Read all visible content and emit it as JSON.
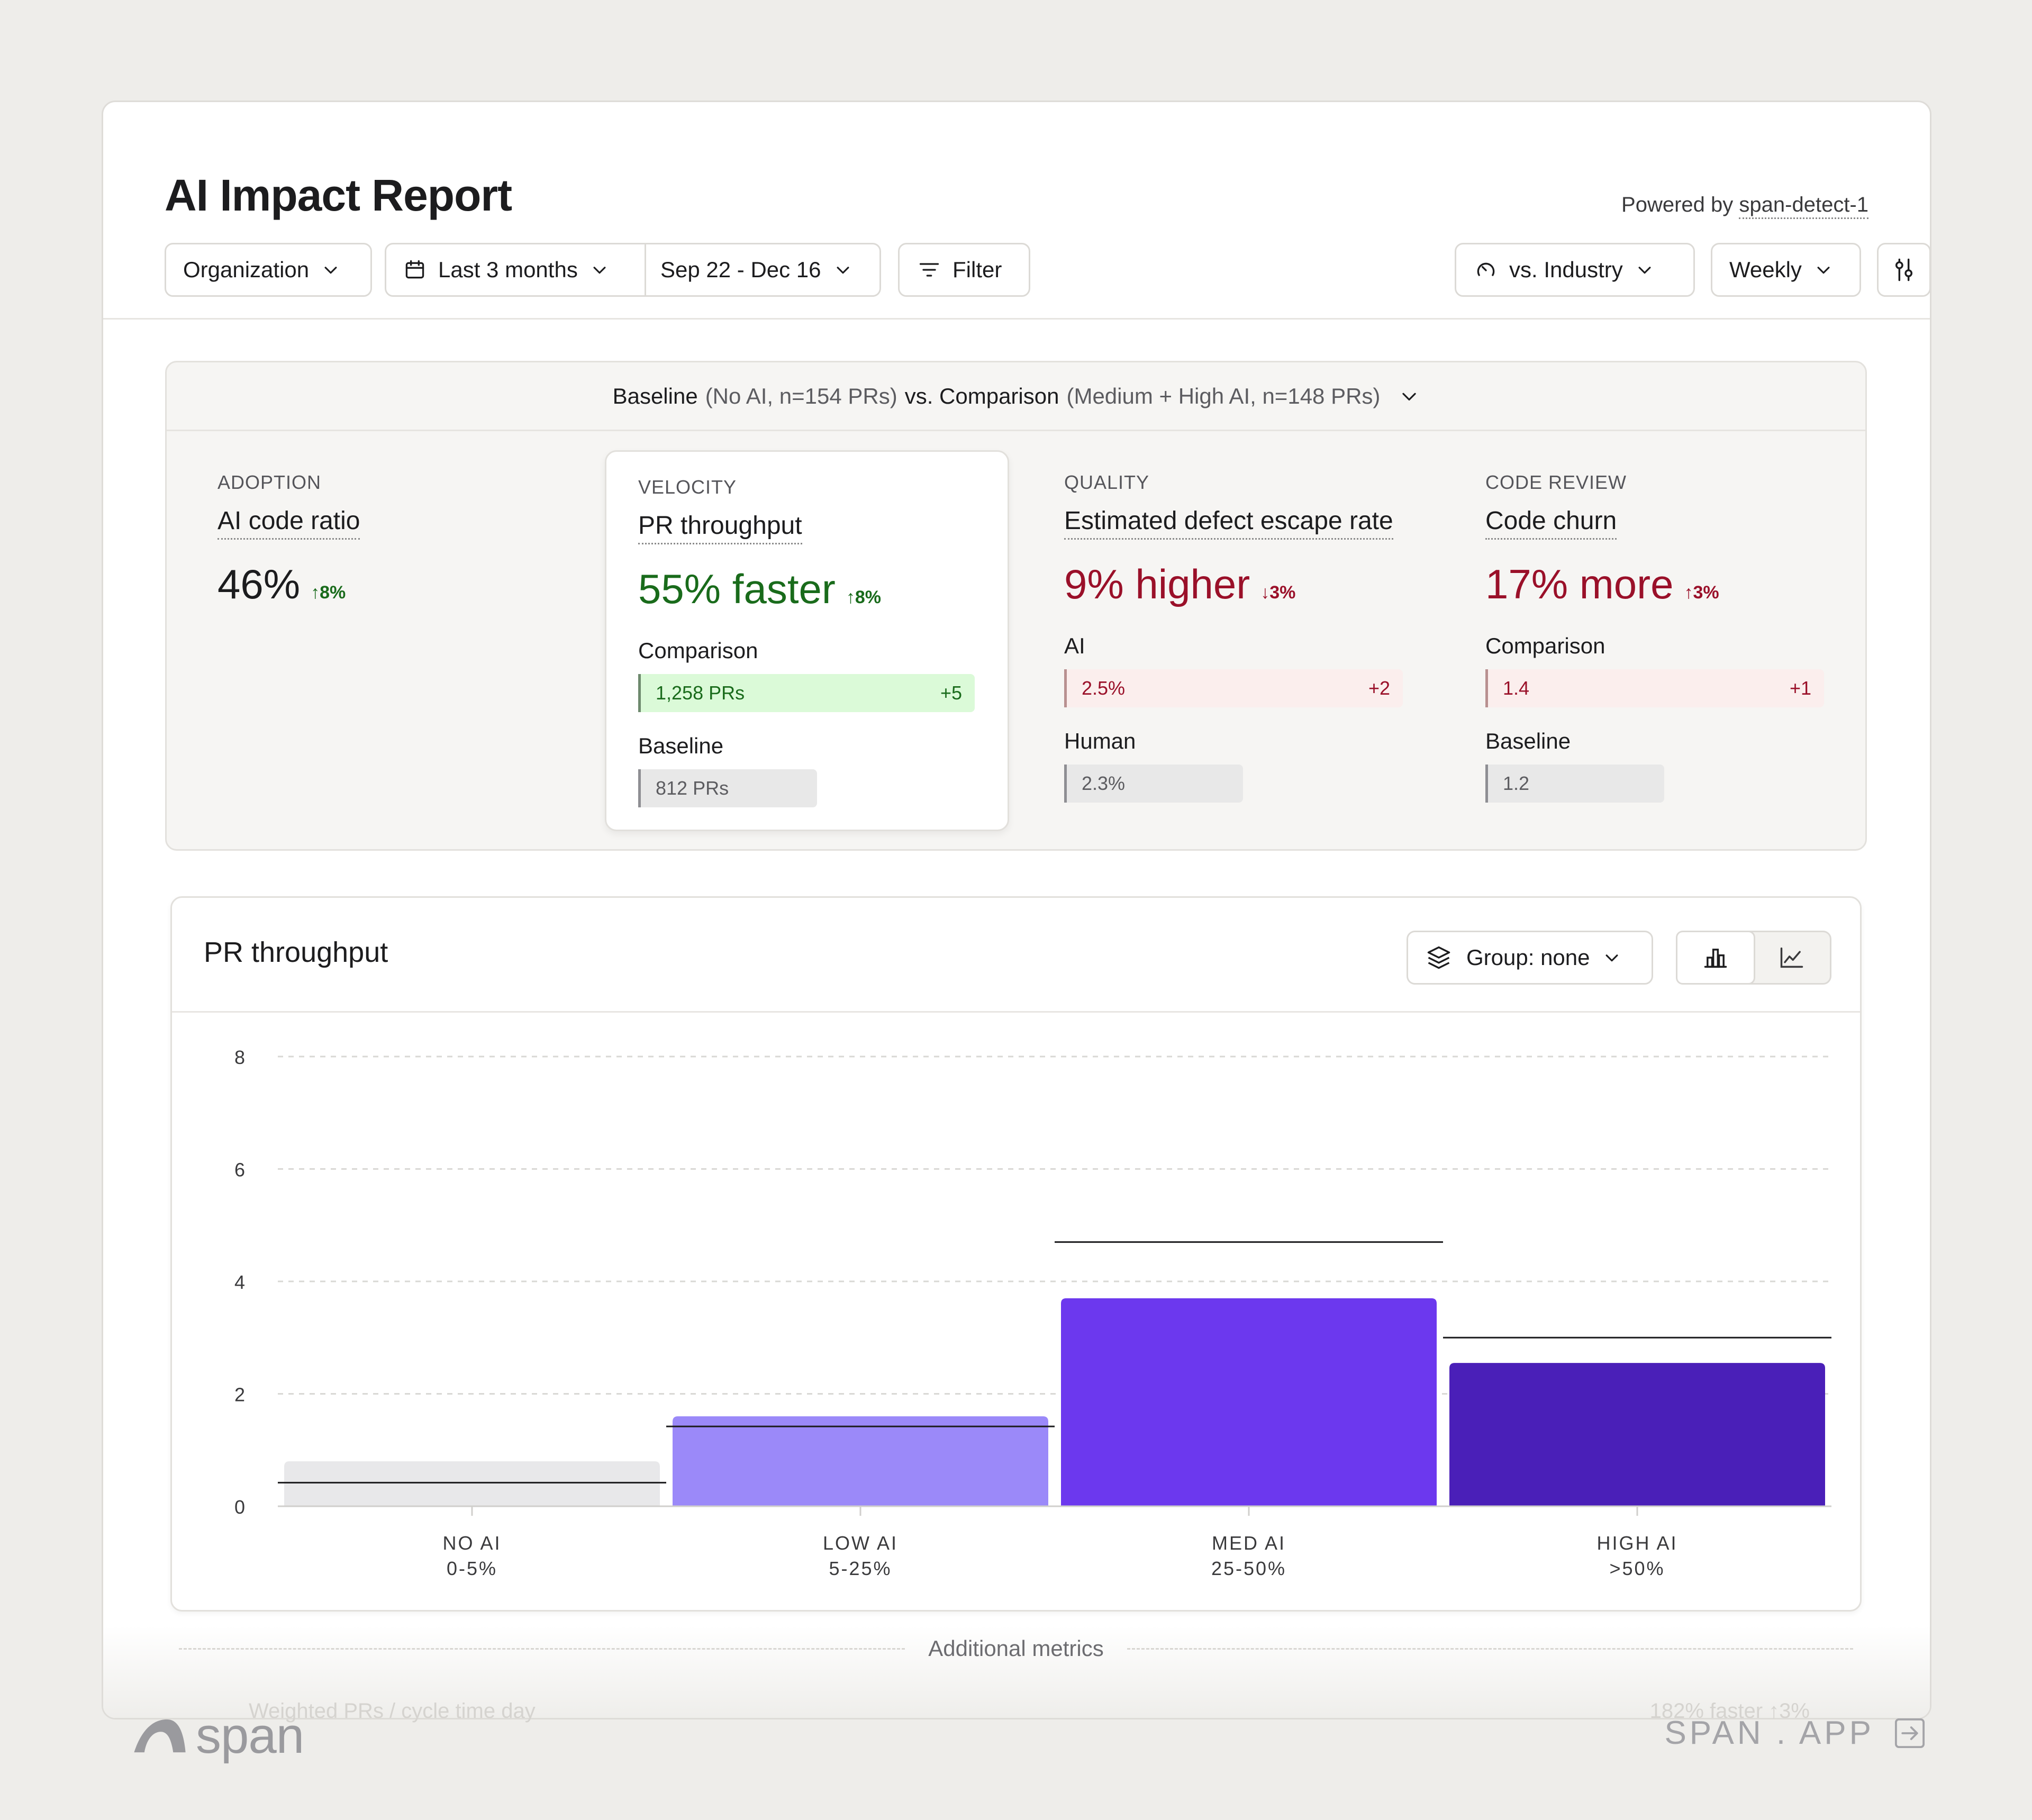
{
  "header": {
    "title": "AI Impact Report",
    "powered_prefix": "Powered by",
    "powered_name": "span-detect-1"
  },
  "toolbar": {
    "organization": "Organization",
    "range": "Last 3 months",
    "dates": "Sep 22 - Dec 16",
    "filter": "Filter",
    "benchmark": "vs. Industry",
    "interval": "Weekly"
  },
  "comparison": {
    "baseline_label": "Baseline",
    "baseline_detail": "(No AI, n=154 PRs)",
    "vs_label": "vs. Comparison",
    "comparison_detail": "(Medium + High AI, n=148 PRs)"
  },
  "metrics": [
    {
      "category": "ADOPTION",
      "name": "AI code ratio",
      "value": "46%",
      "delta": "↑8%"
    },
    {
      "category": "VELOCITY",
      "name": "PR throughput",
      "value": "55% faster",
      "delta": "↑8%",
      "row1_label": "Comparison",
      "row1_value": "1,258 PRs",
      "row1_delta": "+5",
      "row2_label": "Baseline",
      "row2_value": "812 PRs"
    },
    {
      "category": "QUALITY",
      "name": "Estimated defect escape rate",
      "value": "9% higher",
      "delta": "↓3%",
      "row1_label": "AI",
      "row1_value": "2.5%",
      "row1_delta": "+2",
      "row2_label": "Human",
      "row2_value": "2.3%"
    },
    {
      "category": "CODE REVIEW",
      "name": "Code churn",
      "value": "17% more",
      "delta": "↑3%",
      "row1_label": "Comparison",
      "row1_value": "1.4",
      "row1_delta": "+1",
      "row2_label": "Baseline",
      "row2_value": "1.2"
    }
  ],
  "chart_card": {
    "title": "PR throughput",
    "group": "Group: none",
    "view_icons": [
      "bar-chart-icon",
      "line-chart-icon"
    ]
  },
  "chart_data": {
    "type": "bar",
    "categories": [
      "NO AI",
      "LOW AI",
      "MED AI",
      "HIGH AI"
    ],
    "category_sublabels": [
      "0-5%",
      "5-25%",
      "25-50%",
      ">50%"
    ],
    "values": [
      0.8,
      1.6,
      3.7,
      2.55
    ],
    "benchmark_values": [
      0.42,
      1.42,
      4.7,
      3.0
    ],
    "ylim": [
      0,
      8
    ],
    "yticks": [
      0,
      2,
      4,
      6,
      8
    ],
    "grid": true,
    "colors": [
      "#e8e8ea",
      "#9b89f9",
      "#6c38ee",
      "#4a1fb8"
    ]
  },
  "additional": {
    "label": "Additional metrics",
    "ghost_left": "Weighted PRs / cycle time day",
    "ghost_right": "182% faster ↑3%"
  },
  "footer": {
    "brand": "span",
    "app": "SPAN . APP"
  }
}
